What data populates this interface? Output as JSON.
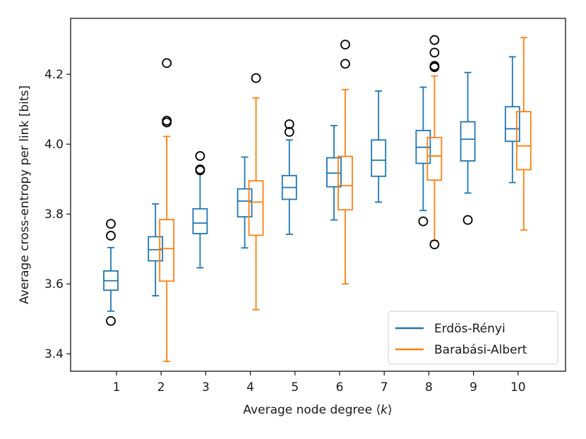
{
  "chart_data": {
    "type": "boxplot",
    "title": "",
    "xlabel": "Average node degree ⟨k⟩",
    "xlabel_main": "Average node degree ⟨",
    "xlabel_var": "k",
    "xlabel_end": "⟩",
    "ylabel": "Average cross-entropy per link [bits]",
    "ylim": [
      3.35,
      4.36
    ],
    "yticks": [
      "3.4",
      "3.6",
      "3.8",
      "4.0",
      "4.2"
    ],
    "yticks_values": [
      3.4,
      3.6,
      3.8,
      4.0,
      4.2
    ],
    "categories": [
      "1",
      "2",
      "3",
      "4",
      "5",
      "6",
      "7",
      "8",
      "9",
      "10"
    ],
    "legend_position": "lower-right",
    "series": [
      {
        "name": "Erdös-Rényi",
        "color": "#1f77b4",
        "boxes": [
          {
            "whislo": 3.522,
            "q1": 3.582,
            "med": 3.609,
            "q3": 3.637,
            "whishi": 3.704,
            "fliers": [
              3.772,
              3.738,
              3.494
            ]
          },
          {
            "whislo": 3.566,
            "q1": 3.666,
            "med": 3.698,
            "q3": 3.735,
            "whishi": 3.829,
            "fliers": []
          },
          {
            "whislo": 3.646,
            "q1": 3.744,
            "med": 3.774,
            "q3": 3.815,
            "whishi": 3.916,
            "fliers": [
              3.966,
              3.928,
              3.925
            ]
          },
          {
            "whislo": 3.703,
            "q1": 3.792,
            "med": 3.837,
            "q3": 3.872,
            "whishi": 3.963,
            "fliers": []
          },
          {
            "whislo": 3.742,
            "q1": 3.842,
            "med": 3.876,
            "q3": 3.91,
            "whishi": 4.012,
            "fliers": [
              4.057,
              4.035
            ]
          },
          {
            "whislo": 3.783,
            "q1": 3.878,
            "med": 3.917,
            "q3": 3.961,
            "whishi": 4.053,
            "fliers": []
          },
          {
            "whislo": 3.834,
            "q1": 3.908,
            "med": 3.954,
            "q3": 4.012,
            "whishi": 4.152,
            "fliers": []
          },
          {
            "whislo": 3.81,
            "q1": 3.945,
            "med": 3.991,
            "q3": 4.039,
            "whishi": 4.163,
            "fliers": [
              3.779
            ]
          },
          {
            "whislo": 3.86,
            "q1": 3.952,
            "med": 4.014,
            "q3": 4.064,
            "whishi": 4.205,
            "fliers": [
              3.783
            ]
          },
          {
            "whislo": 3.89,
            "q1": 4.008,
            "med": 4.044,
            "q3": 4.107,
            "whishi": 4.25,
            "fliers": []
          }
        ]
      },
      {
        "name": "Barabási-Albert",
        "color": "#ff7f0e",
        "boxes": [
          null,
          {
            "whislo": 3.378,
            "q1": 3.608,
            "med": 3.701,
            "q3": 3.784,
            "whishi": 4.022,
            "fliers": [
              4.232,
              4.067,
              4.062
            ]
          },
          null,
          {
            "whislo": 3.526,
            "q1": 3.739,
            "med": 3.834,
            "q3": 3.895,
            "whishi": 4.132,
            "fliers": [
              4.189
            ]
          },
          null,
          {
            "whislo": 3.6,
            "q1": 3.812,
            "med": 3.881,
            "q3": 3.965,
            "whishi": 4.156,
            "fliers": [
              4.285,
              4.23
            ]
          },
          null,
          {
            "whislo": 3.724,
            "q1": 3.897,
            "med": 3.966,
            "q3": 4.019,
            "whishi": 4.195,
            "fliers": [
              4.298,
              4.262,
              4.224,
              4.22,
              3.713
            ]
          },
          null,
          {
            "whislo": 3.754,
            "q1": 3.927,
            "med": 3.995,
            "q3": 4.093,
            "whishi": 4.305,
            "fliers": []
          }
        ]
      }
    ]
  }
}
